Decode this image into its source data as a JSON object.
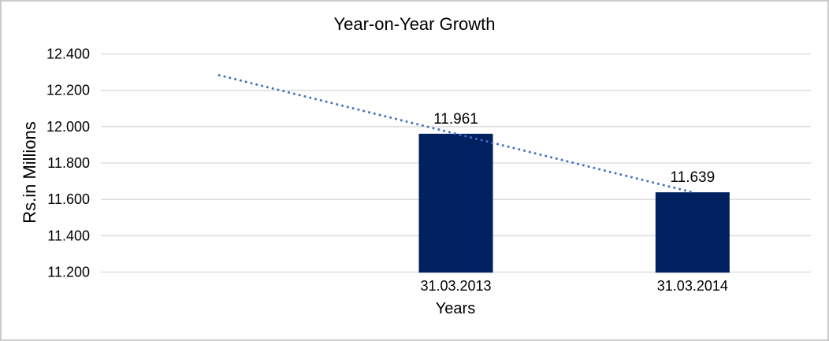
{
  "chart_data": {
    "type": "bar",
    "title": "Year-on-Year Growth",
    "xlabel": "Years",
    "ylabel": "Rs.in Millions",
    "categories": [
      "31.03.2013",
      "31.03.2014"
    ],
    "values": [
      11961,
      11639
    ],
    "data_labels": [
      "11.961",
      "11.639"
    ],
    "ylim": [
      11200,
      12400
    ],
    "yticks": [
      {
        "value": 11200,
        "label": "11.200"
      },
      {
        "value": 11400,
        "label": "11.400"
      },
      {
        "value": 11600,
        "label": "11.600"
      },
      {
        "value": 11800,
        "label": "11.800"
      },
      {
        "value": 12000,
        "label": "12.000"
      },
      {
        "value": 12200,
        "label": "12.200"
      },
      {
        "value": 12400,
        "label": "12.400"
      }
    ],
    "grid": true,
    "legend": false,
    "trendline": {
      "style": "dotted",
      "points": [
        {
          "x_category": -1,
          "value": 12283
        },
        {
          "x_category": 1,
          "value": 11639
        }
      ]
    },
    "colors": {
      "bar": "#002060",
      "trendline": "#4472c4",
      "gridline": "#d9d9d9",
      "axis_line": "#d9d9d9",
      "text": "#000000",
      "frame_border": "#cbcbcb",
      "background": "#ffffff"
    }
  }
}
